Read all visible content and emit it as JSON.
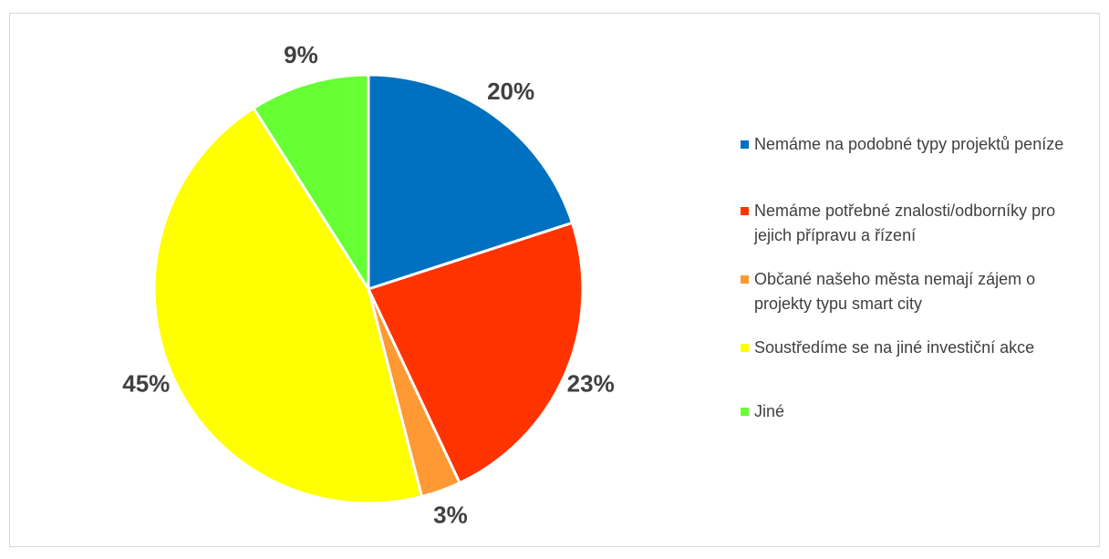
{
  "chart_data": {
    "type": "pie",
    "categories": [
      "Nemáme na podobné typy projektů peníze",
      "Nemáme potřebné znalosti/odborníky pro jejich přípravu a řízení",
      "Občané našeho města nemají zájem o projekty typu smart city",
      "Soustředíme se na jiné investiční akce",
      "Jiné"
    ],
    "values": [
      20,
      23,
      3,
      45,
      9
    ],
    "value_labels": [
      "20%",
      "23%",
      "3%",
      "45%",
      "9%"
    ],
    "colors": [
      "#0070c0",
      "#ff3300",
      "#ff9933",
      "#ffff00",
      "#66ff33"
    ],
    "legend": "right"
  }
}
